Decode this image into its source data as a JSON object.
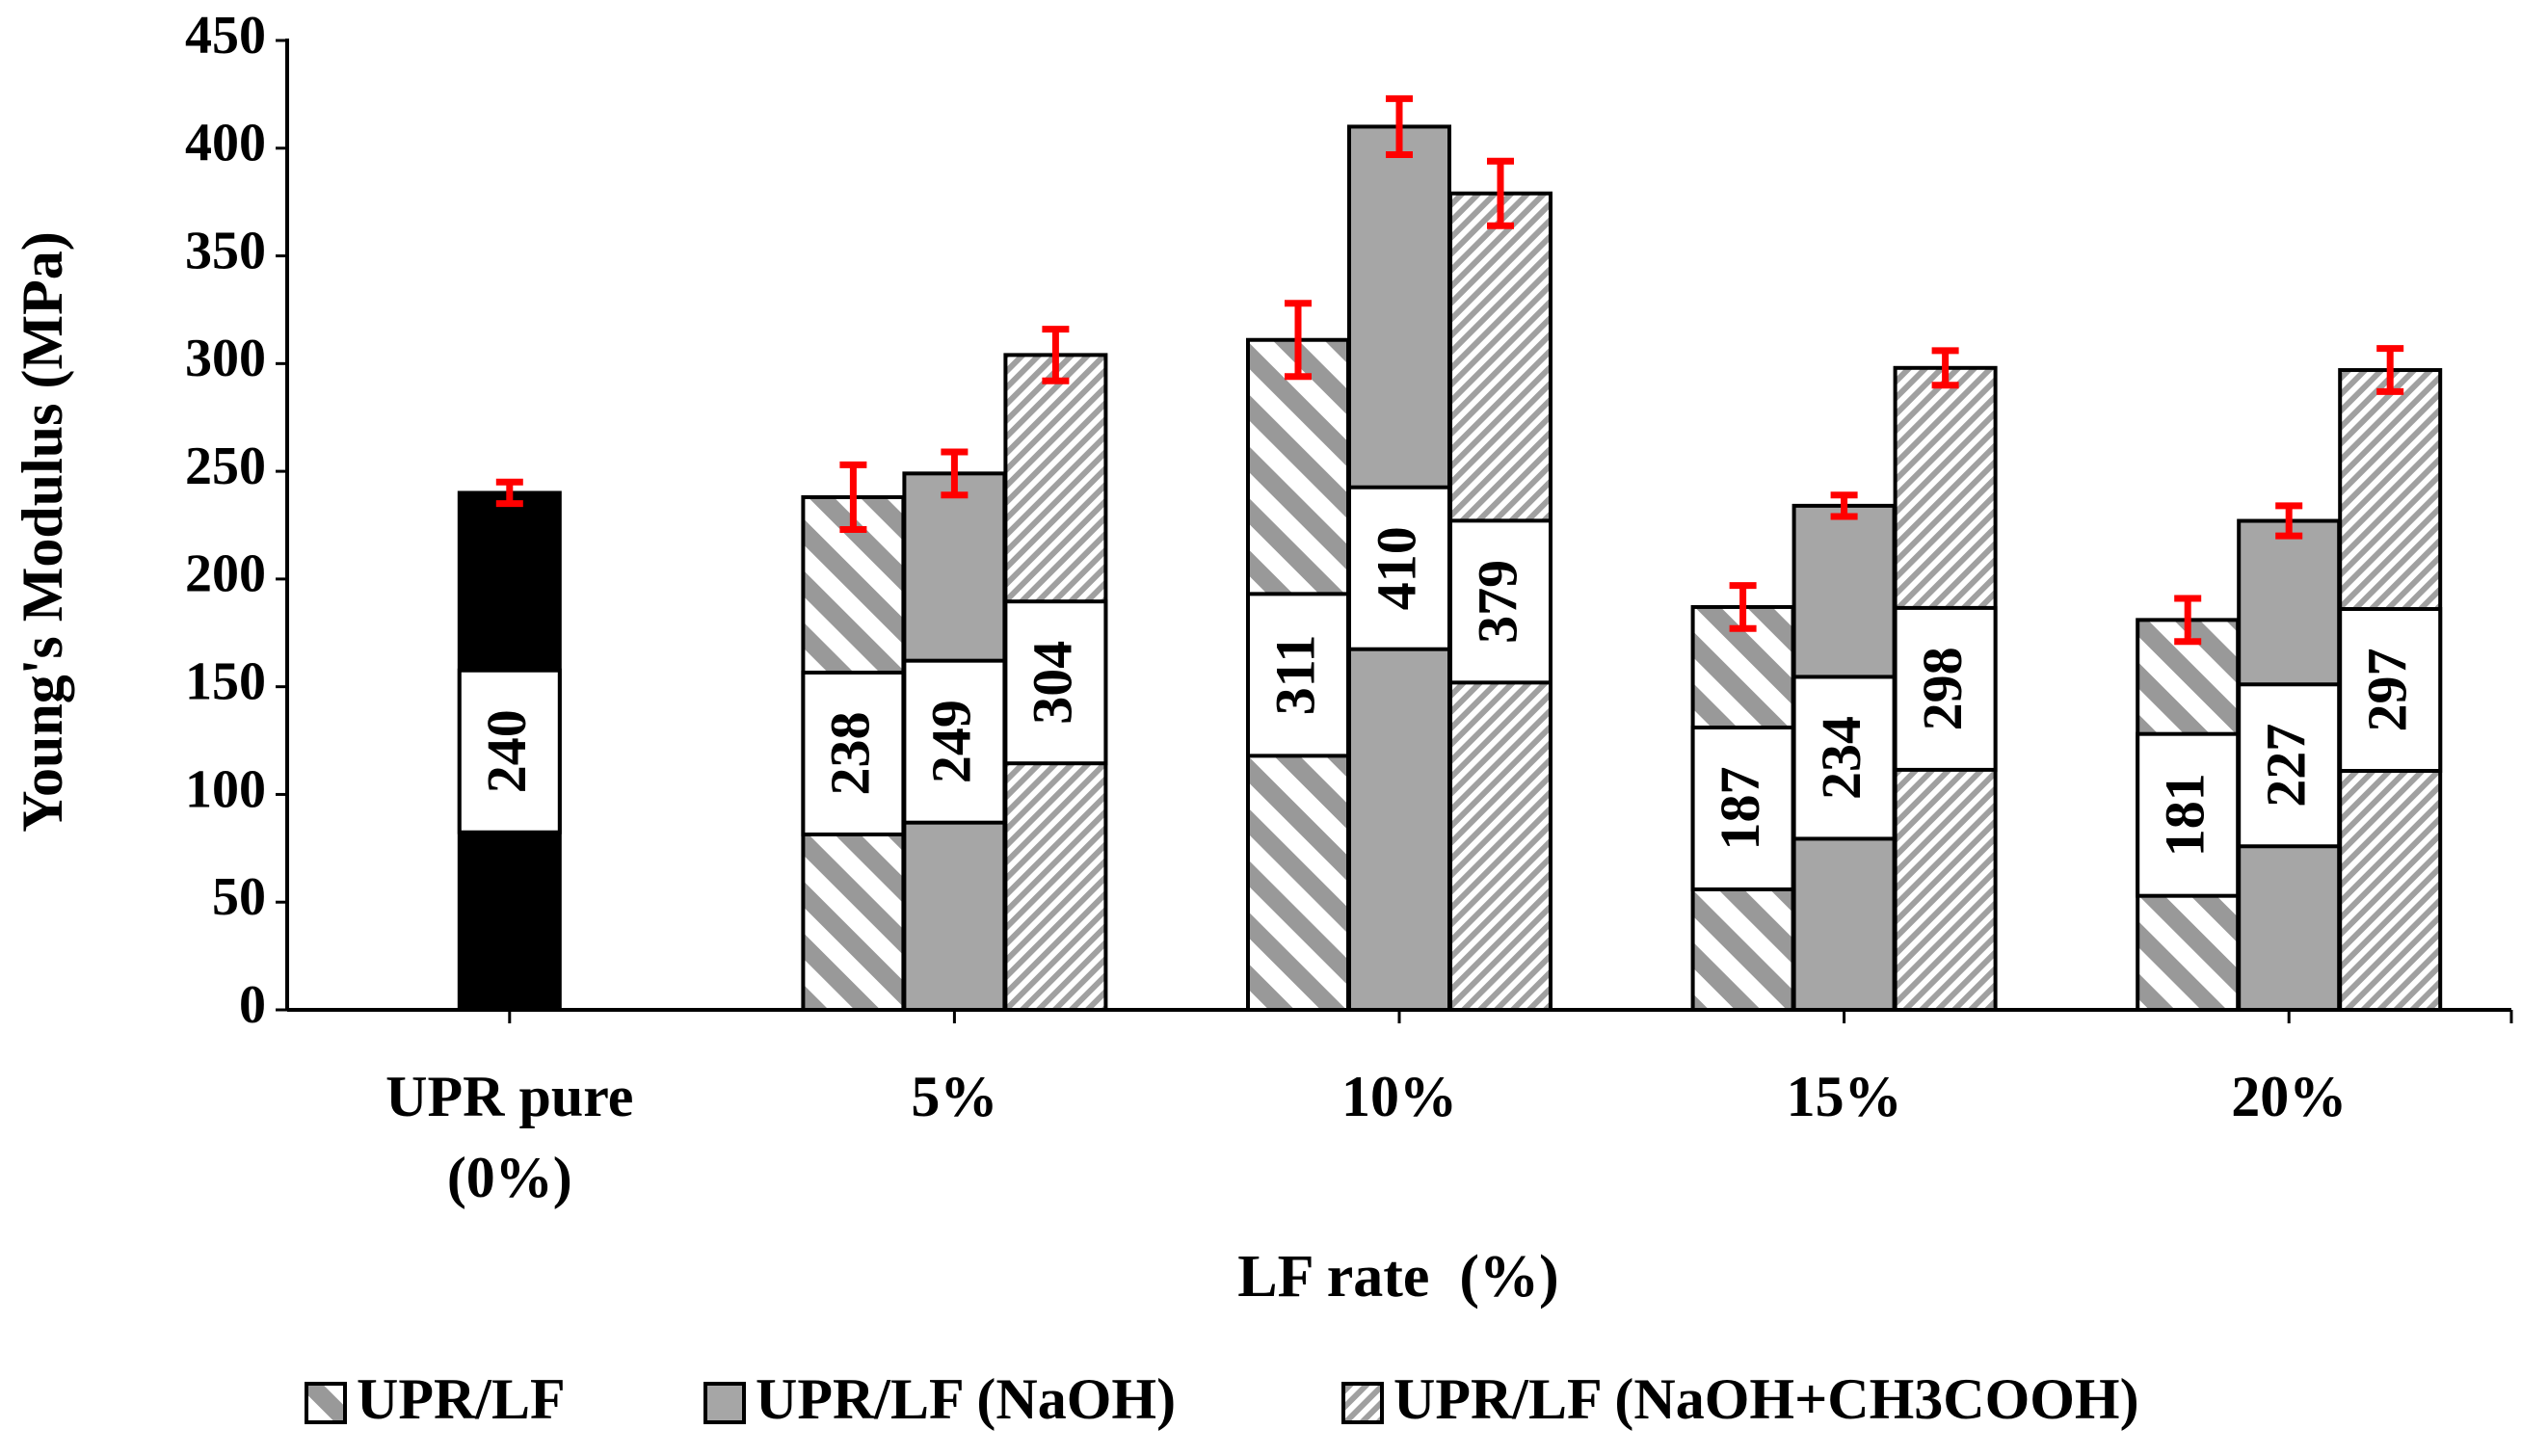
{
  "chart_data": {
    "type": "bar",
    "y_label": "Young's Modulus (MPa)",
    "x_label": "LF rate  (%)",
    "categories": [
      "UPR pure\n(0%)",
      "5%",
      "10%",
      "15%",
      "20%"
    ],
    "series": [
      {
        "color": "#000000",
        "pattern": "solid",
        "values": [
          240,
          null,
          null,
          null,
          null
        ],
        "errors": [
          5,
          null,
          null,
          null,
          null
        ]
      },
      {
        "name": "UPR/LF",
        "color": "#999999",
        "pattern": "wide-downward-diagonal",
        "values": [
          null,
          238,
          311,
          187,
          181
        ],
        "errors": [
          null,
          15,
          17,
          10,
          10
        ]
      },
      {
        "name": "UPR/LF (NaOH)",
        "color": "#a6a6a6",
        "pattern": "solid",
        "values": [
          null,
          249,
          410,
          234,
          227
        ],
        "errors": [
          null,
          10,
          13,
          5,
          7
        ]
      },
      {
        "name": "UPR/LF (NaOH+CH3COOH)",
        "color": "#a0a0a0",
        "pattern": "narrow-upward-diagonal",
        "values": [
          null,
          304,
          379,
          298,
          297
        ],
        "errors": [
          null,
          12,
          15,
          8,
          10
        ]
      }
    ],
    "error_color": "#ff0000",
    "ylim": [
      0,
      450
    ],
    "yticks": [
      0,
      50,
      100,
      150,
      200,
      250,
      300,
      350,
      400,
      450
    ],
    "grid": false,
    "legend": "bottom"
  }
}
